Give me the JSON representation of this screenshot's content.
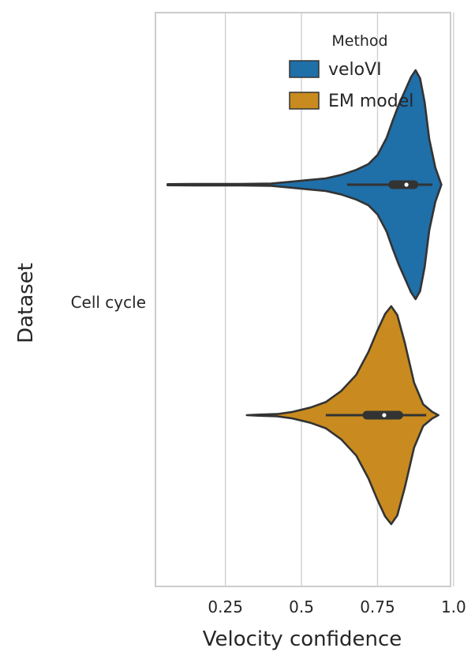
{
  "chart_data": {
    "type": "violin",
    "orientation": "horizontal",
    "xlabel": "Velocity confidence",
    "ylabel": "Dataset",
    "xlim": [
      0.02,
      0.99
    ],
    "xticks": [
      0.25,
      0.5,
      0.75,
      1.0
    ],
    "xtick_labels": [
      "0.25",
      "0.5",
      "0.75",
      "1.0"
    ],
    "categories": [
      "Cell cycle"
    ],
    "grid": "vertical",
    "legend": {
      "title": "Method",
      "placement": "top-right",
      "entries": [
        "veloVI",
        "EM model"
      ]
    },
    "series": [
      {
        "name": "veloVI",
        "color": "#1f6fa8",
        "min": 0.06,
        "max": 0.96,
        "whisker": [
          0.65,
          0.93
        ],
        "q1": 0.8,
        "median": 0.845,
        "q3": 0.87,
        "density": [
          [
            0.06,
            0.005
          ],
          [
            0.15,
            0.006
          ],
          [
            0.3,
            0.006
          ],
          [
            0.4,
            0.01
          ],
          [
            0.46,
            0.025
          ],
          [
            0.52,
            0.04
          ],
          [
            0.58,
            0.055
          ],
          [
            0.63,
            0.085
          ],
          [
            0.68,
            0.13
          ],
          [
            0.72,
            0.18
          ],
          [
            0.75,
            0.26
          ],
          [
            0.78,
            0.41
          ],
          [
            0.8,
            0.56
          ],
          [
            0.82,
            0.7
          ],
          [
            0.84,
            0.82
          ],
          [
            0.86,
            0.94
          ],
          [
            0.875,
            1.0
          ],
          [
            0.89,
            0.93
          ],
          [
            0.905,
            0.72
          ],
          [
            0.92,
            0.4
          ],
          [
            0.94,
            0.15
          ],
          [
            0.96,
            0.0
          ]
        ]
      },
      {
        "name": "EM model",
        "color": "#c98b1f",
        "min": 0.32,
        "max": 0.95,
        "whisker": [
          0.58,
          0.91
        ],
        "q1": 0.715,
        "median": 0.772,
        "q3": 0.82,
        "density": [
          [
            0.32,
            0.0
          ],
          [
            0.36,
            0.005
          ],
          [
            0.42,
            0.01
          ],
          [
            0.47,
            0.03
          ],
          [
            0.53,
            0.07
          ],
          [
            0.58,
            0.12
          ],
          [
            0.63,
            0.22
          ],
          [
            0.68,
            0.37
          ],
          [
            0.72,
            0.58
          ],
          [
            0.75,
            0.78
          ],
          [
            0.775,
            0.93
          ],
          [
            0.795,
            1.0
          ],
          [
            0.815,
            0.92
          ],
          [
            0.84,
            0.66
          ],
          [
            0.87,
            0.3
          ],
          [
            0.9,
            0.1
          ],
          [
            0.93,
            0.03
          ],
          [
            0.95,
            0.0
          ]
        ]
      }
    ]
  }
}
